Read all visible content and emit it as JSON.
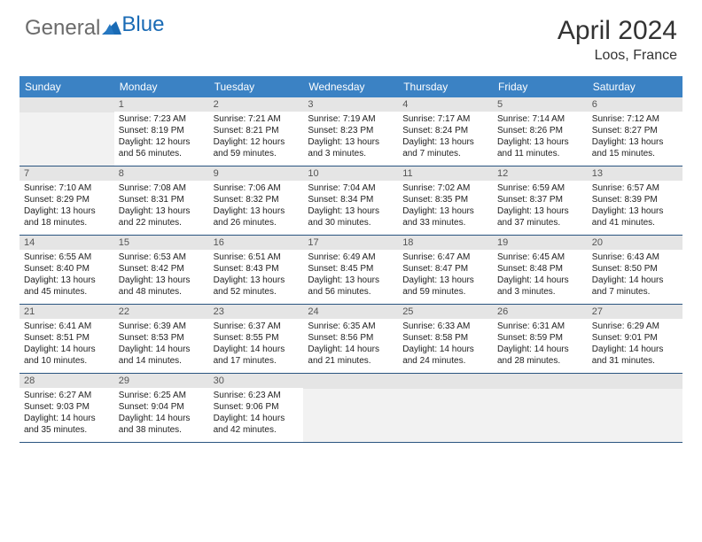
{
  "logo": {
    "text1": "General",
    "text2": "Blue"
  },
  "title": "April 2024",
  "location": "Loos, France",
  "header_color": "#3b82c4",
  "row_border_color": "#2a5580",
  "daynum_bg": "#e5e5e5",
  "empty_bg": "#f2f2f2",
  "weekdays": [
    "Sunday",
    "Monday",
    "Tuesday",
    "Wednesday",
    "Thursday",
    "Friday",
    "Saturday"
  ],
  "weeks": [
    [
      null,
      {
        "n": "1",
        "sr": "7:23 AM",
        "ss": "8:19 PM",
        "d1": "12 hours",
        "d2": "and 56 minutes."
      },
      {
        "n": "2",
        "sr": "7:21 AM",
        "ss": "8:21 PM",
        "d1": "12 hours",
        "d2": "and 59 minutes."
      },
      {
        "n": "3",
        "sr": "7:19 AM",
        "ss": "8:23 PM",
        "d1": "13 hours",
        "d2": "and 3 minutes."
      },
      {
        "n": "4",
        "sr": "7:17 AM",
        "ss": "8:24 PM",
        "d1": "13 hours",
        "d2": "and 7 minutes."
      },
      {
        "n": "5",
        "sr": "7:14 AM",
        "ss": "8:26 PM",
        "d1": "13 hours",
        "d2": "and 11 minutes."
      },
      {
        "n": "6",
        "sr": "7:12 AM",
        "ss": "8:27 PM",
        "d1": "13 hours",
        "d2": "and 15 minutes."
      }
    ],
    [
      {
        "n": "7",
        "sr": "7:10 AM",
        "ss": "8:29 PM",
        "d1": "13 hours",
        "d2": "and 18 minutes."
      },
      {
        "n": "8",
        "sr": "7:08 AM",
        "ss": "8:31 PM",
        "d1": "13 hours",
        "d2": "and 22 minutes."
      },
      {
        "n": "9",
        "sr": "7:06 AM",
        "ss": "8:32 PM",
        "d1": "13 hours",
        "d2": "and 26 minutes."
      },
      {
        "n": "10",
        "sr": "7:04 AM",
        "ss": "8:34 PM",
        "d1": "13 hours",
        "d2": "and 30 minutes."
      },
      {
        "n": "11",
        "sr": "7:02 AM",
        "ss": "8:35 PM",
        "d1": "13 hours",
        "d2": "and 33 minutes."
      },
      {
        "n": "12",
        "sr": "6:59 AM",
        "ss": "8:37 PM",
        "d1": "13 hours",
        "d2": "and 37 minutes."
      },
      {
        "n": "13",
        "sr": "6:57 AM",
        "ss": "8:39 PM",
        "d1": "13 hours",
        "d2": "and 41 minutes."
      }
    ],
    [
      {
        "n": "14",
        "sr": "6:55 AM",
        "ss": "8:40 PM",
        "d1": "13 hours",
        "d2": "and 45 minutes."
      },
      {
        "n": "15",
        "sr": "6:53 AM",
        "ss": "8:42 PM",
        "d1": "13 hours",
        "d2": "and 48 minutes."
      },
      {
        "n": "16",
        "sr": "6:51 AM",
        "ss": "8:43 PM",
        "d1": "13 hours",
        "d2": "and 52 minutes."
      },
      {
        "n": "17",
        "sr": "6:49 AM",
        "ss": "8:45 PM",
        "d1": "13 hours",
        "d2": "and 56 minutes."
      },
      {
        "n": "18",
        "sr": "6:47 AM",
        "ss": "8:47 PM",
        "d1": "13 hours",
        "d2": "and 59 minutes."
      },
      {
        "n": "19",
        "sr": "6:45 AM",
        "ss": "8:48 PM",
        "d1": "14 hours",
        "d2": "and 3 minutes."
      },
      {
        "n": "20",
        "sr": "6:43 AM",
        "ss": "8:50 PM",
        "d1": "14 hours",
        "d2": "and 7 minutes."
      }
    ],
    [
      {
        "n": "21",
        "sr": "6:41 AM",
        "ss": "8:51 PM",
        "d1": "14 hours",
        "d2": "and 10 minutes."
      },
      {
        "n": "22",
        "sr": "6:39 AM",
        "ss": "8:53 PM",
        "d1": "14 hours",
        "d2": "and 14 minutes."
      },
      {
        "n": "23",
        "sr": "6:37 AM",
        "ss": "8:55 PM",
        "d1": "14 hours",
        "d2": "and 17 minutes."
      },
      {
        "n": "24",
        "sr": "6:35 AM",
        "ss": "8:56 PM",
        "d1": "14 hours",
        "d2": "and 21 minutes."
      },
      {
        "n": "25",
        "sr": "6:33 AM",
        "ss": "8:58 PM",
        "d1": "14 hours",
        "d2": "and 24 minutes."
      },
      {
        "n": "26",
        "sr": "6:31 AM",
        "ss": "8:59 PM",
        "d1": "14 hours",
        "d2": "and 28 minutes."
      },
      {
        "n": "27",
        "sr": "6:29 AM",
        "ss": "9:01 PM",
        "d1": "14 hours",
        "d2": "and 31 minutes."
      }
    ],
    [
      {
        "n": "28",
        "sr": "6:27 AM",
        "ss": "9:03 PM",
        "d1": "14 hours",
        "d2": "and 35 minutes."
      },
      {
        "n": "29",
        "sr": "6:25 AM",
        "ss": "9:04 PM",
        "d1": "14 hours",
        "d2": "and 38 minutes."
      },
      {
        "n": "30",
        "sr": "6:23 AM",
        "ss": "9:06 PM",
        "d1": "14 hours",
        "d2": "and 42 minutes."
      },
      null,
      null,
      null,
      null
    ]
  ],
  "labels": {
    "sunrise": "Sunrise:",
    "sunset": "Sunset:",
    "daylight": "Daylight:"
  }
}
